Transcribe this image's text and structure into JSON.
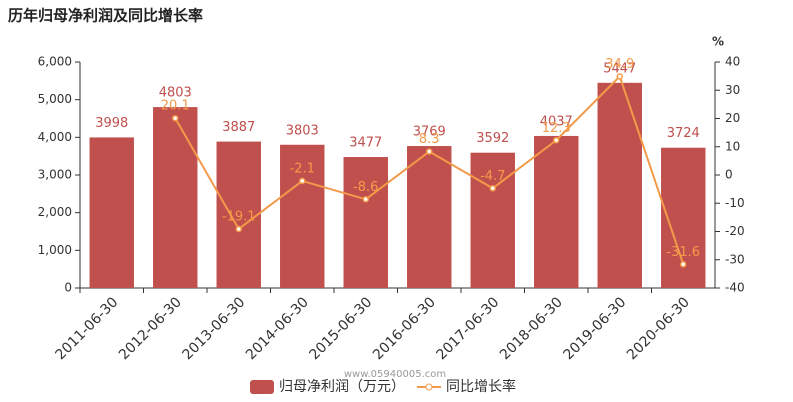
{
  "chart_data": {
    "type": "bar-line",
    "title": "历年归母净利润及同比增长率",
    "categories": [
      "2011-06-30",
      "2012-06-30",
      "2013-06-30",
      "2014-06-30",
      "2015-06-30",
      "2016-06-30",
      "2017-06-30",
      "2018-06-30",
      "2019-06-30",
      "2020-06-30"
    ],
    "series": [
      {
        "name": "归母净利润（万元）",
        "type": "bar",
        "color": "#c0504d",
        "values": [
          3998,
          4803,
          3887,
          3803,
          3477,
          3769,
          3592,
          4037,
          5447,
          3724
        ]
      },
      {
        "name": "同比增长率",
        "type": "line",
        "axis": "y2",
        "color": "#f39a4a",
        "values": [
          null,
          20.1,
          -19.1,
          -2.1,
          -8.6,
          8.3,
          -4.7,
          12.3,
          34.9,
          -31.6
        ]
      }
    ],
    "ylim": [
      0,
      6000
    ],
    "yticks": [
      0,
      {
        "value": 1000,
        "label": "1,000"
      },
      {
        "value": 2000,
        "label": "2,000"
      },
      {
        "value": 3000,
        "label": "3,000"
      },
      {
        "value": 4000,
        "label": "4,000"
      },
      {
        "value": 5000,
        "label": "5,000"
      },
      {
        "value": 6000,
        "label": "6,000"
      }
    ],
    "y2label": "%",
    "y2lim": [
      -40,
      40
    ],
    "y2ticks": [
      -40,
      -30,
      -20,
      -10,
      0,
      10,
      20,
      30,
      40
    ],
    "watermark": "www.05940005.com",
    "legend": "bottom"
  }
}
